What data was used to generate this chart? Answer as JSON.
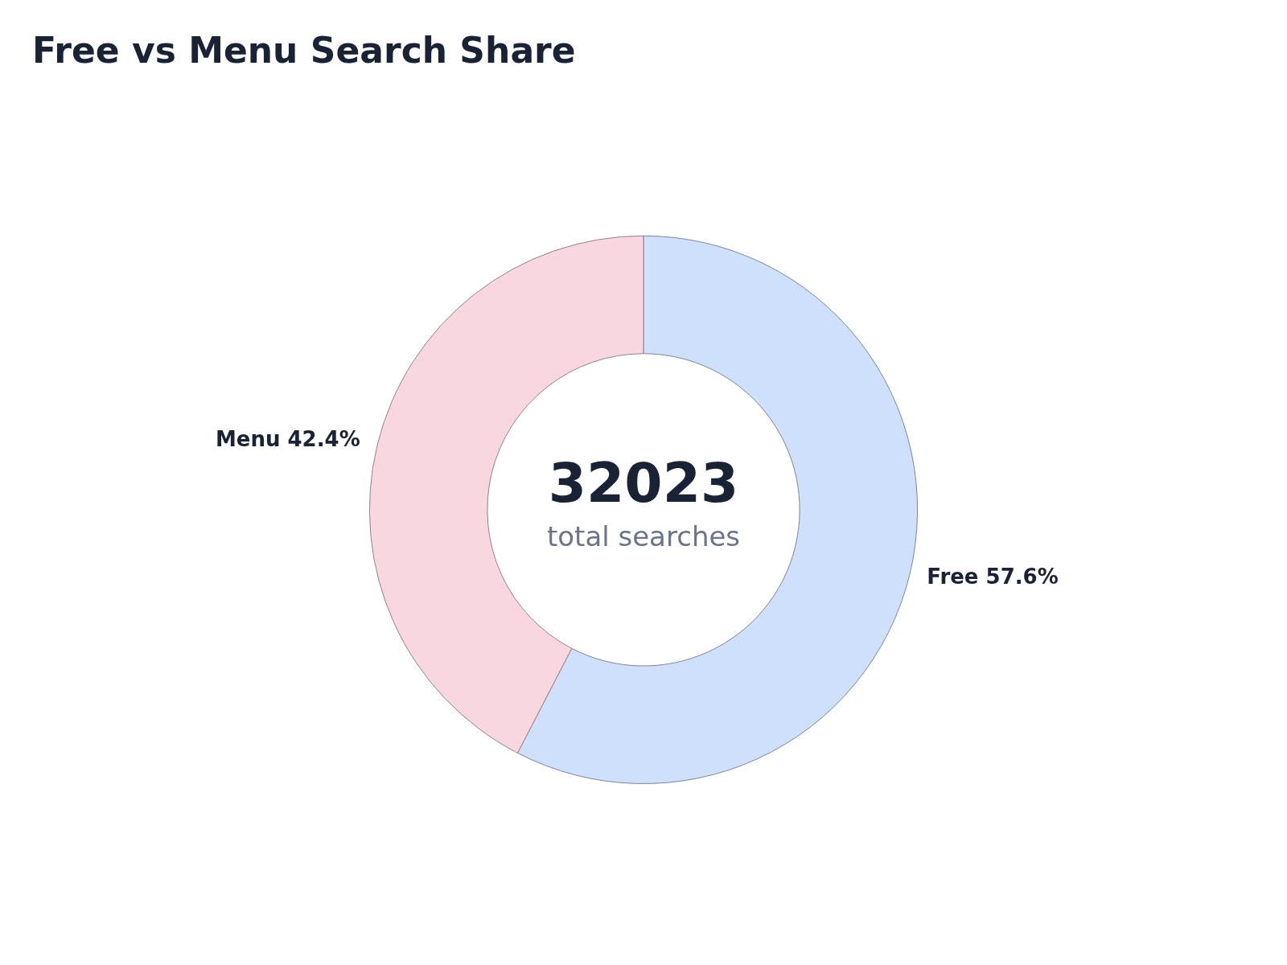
{
  "chart_data": {
    "type": "donut",
    "title": "Free vs Menu Search Share",
    "categories": [
      "Free",
      "Menu"
    ],
    "values": [
      57.6,
      42.4
    ],
    "colors": [
      "#cfe0fc",
      "#f8d7e0"
    ],
    "value_labels": [
      "57.6%",
      "42.4%"
    ],
    "annotations": [
      "32023",
      "total searches"
    ],
    "legend": false
  }
}
